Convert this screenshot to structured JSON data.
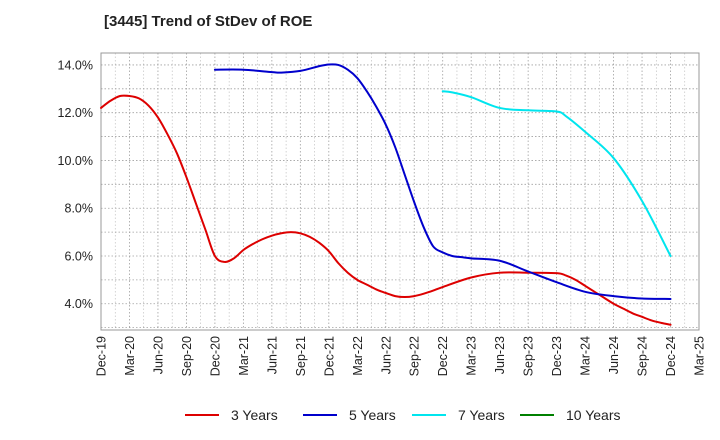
{
  "page": {
    "title": "[3445]  Trend of StDev of ROE"
  },
  "chart_data": {
    "type": "line",
    "title": "[3445]  Trend of StDev of ROE",
    "xlabel": "",
    "ylabel": "",
    "x_ticks": [
      "Dec-19",
      "Mar-20",
      "Jun-20",
      "Sep-20",
      "Dec-20",
      "Mar-21",
      "Jun-21",
      "Sep-21",
      "Dec-21",
      "Mar-22",
      "Jun-22",
      "Sep-22",
      "Dec-22",
      "Mar-23",
      "Jun-23",
      "Sep-23",
      "Dec-23",
      "Mar-24",
      "Jun-24",
      "Sep-24",
      "Dec-24",
      "Mar-25"
    ],
    "y_ticks": [
      "4.0%",
      "6.0%",
      "8.0%",
      "10.0%",
      "12.0%",
      "14.0%"
    ],
    "ylim": [
      2.9,
      14.5
    ],
    "grid": true,
    "legend_position": "bottom",
    "series": [
      {
        "name": "3 Years",
        "color": "#dd0000",
        "x": [
          "2019-12",
          "2020-01",
          "2020-02",
          "2020-03",
          "2020-04",
          "2020-05",
          "2020-06",
          "2020-07",
          "2020-08",
          "2020-09",
          "2020-10",
          "2020-11",
          "2020-12",
          "2021-01",
          "2021-02",
          "2021-03",
          "2021-04",
          "2021-05",
          "2021-06",
          "2021-07",
          "2021-08",
          "2021-09",
          "2021-10",
          "2021-11",
          "2021-12",
          "2022-01",
          "2022-02",
          "2022-03",
          "2022-04",
          "2022-05",
          "2022-06",
          "2022-07",
          "2022-08",
          "2022-09",
          "2022-10",
          "2022-11",
          "2022-12",
          "2023-03",
          "2023-06",
          "2023-09",
          "2023-12",
          "2024-01",
          "2024-02",
          "2024-03",
          "2024-04",
          "2024-05",
          "2024-06",
          "2024-07",
          "2024-08",
          "2024-09",
          "2024-10",
          "2024-11",
          "2024-12"
        ],
        "values": [
          12.2,
          12.5,
          12.7,
          12.7,
          12.6,
          12.3,
          11.8,
          11.1,
          10.3,
          9.3,
          8.2,
          7.1,
          6.0,
          5.75,
          5.9,
          6.25,
          6.5,
          6.7,
          6.85,
          6.95,
          7.0,
          6.95,
          6.8,
          6.55,
          6.2,
          5.7,
          5.3,
          5.0,
          4.8,
          4.6,
          4.45,
          4.32,
          4.28,
          4.32,
          4.42,
          4.55,
          4.7,
          5.1,
          5.3,
          5.3,
          5.28,
          5.18,
          5.0,
          4.75,
          4.5,
          4.25,
          4.0,
          3.8,
          3.6,
          3.45,
          3.3,
          3.2,
          3.12
        ]
      },
      {
        "name": "5 Years",
        "color": "#0000cc",
        "x": [
          "2020-12",
          "2021-03",
          "2021-06",
          "2021-07",
          "2021-09",
          "2021-11",
          "2021-12",
          "2022-01",
          "2022-02",
          "2022-03",
          "2022-04",
          "2022-05",
          "2022-06",
          "2022-07",
          "2022-08",
          "2022-09",
          "2022-10",
          "2022-11",
          "2022-12",
          "2023-01",
          "2023-02",
          "2023-03",
          "2023-06",
          "2023-09",
          "2023-12",
          "2024-03",
          "2024-06",
          "2024-09",
          "2024-12"
        ],
        "values": [
          13.8,
          13.8,
          13.7,
          13.68,
          13.75,
          13.95,
          14.02,
          14.0,
          13.8,
          13.45,
          12.9,
          12.25,
          11.5,
          10.55,
          9.4,
          8.25,
          7.2,
          6.4,
          6.15,
          6.0,
          5.95,
          5.9,
          5.8,
          5.35,
          4.9,
          4.5,
          4.32,
          4.22,
          4.2
        ]
      },
      {
        "name": "7 Years",
        "color": "#00e5ee",
        "x": [
          "2022-12",
          "2023-01",
          "2023-03",
          "2023-06",
          "2023-09",
          "2023-12",
          "2024-01",
          "2024-03",
          "2024-06",
          "2024-09",
          "2024-12"
        ],
        "values": [
          12.9,
          12.85,
          12.65,
          12.2,
          12.1,
          12.05,
          11.85,
          11.2,
          10.1,
          8.3,
          6.0
        ]
      },
      {
        "name": "10 Years",
        "color": "#008000",
        "x": [],
        "values": []
      }
    ]
  }
}
